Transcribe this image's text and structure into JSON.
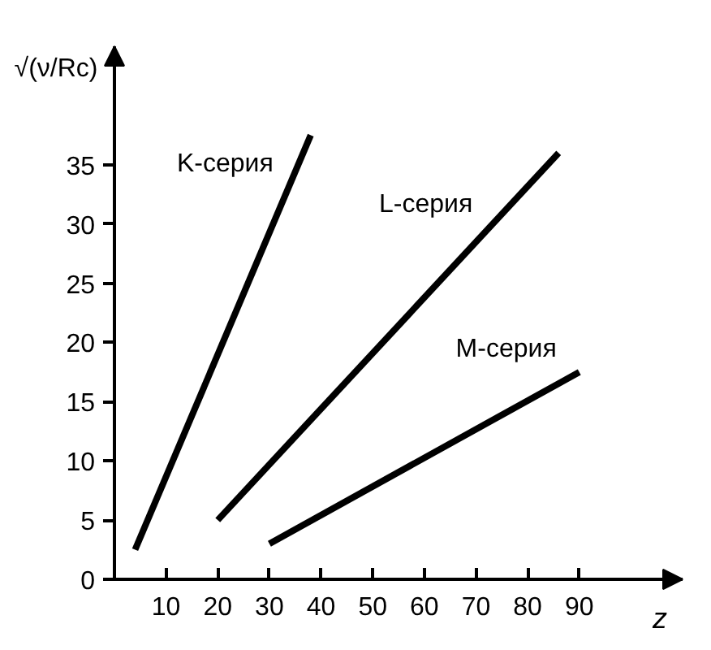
{
  "chart_data": {
    "type": "line",
    "xlabel": "z",
    "ylabel": "√(ν/Rc)",
    "series": [
      {
        "name": "K-серия",
        "color": "#000000",
        "x": [
          4,
          38
        ],
        "values": [
          2.5,
          37.5
        ]
      },
      {
        "name": "L-серия",
        "color": "#000000",
        "x": [
          20,
          86
        ],
        "values": [
          5,
          36
        ]
      },
      {
        "name": "M-серия",
        "color": "#000000",
        "x": [
          30,
          90
        ],
        "values": [
          3,
          17.5
        ]
      }
    ],
    "xlim": [
      0,
      110
    ],
    "ylim": [
      0,
      45
    ],
    "xticks": [
      10,
      20,
      30,
      40,
      50,
      60,
      70,
      80,
      90
    ],
    "yticks": [
      0,
      5,
      10,
      15,
      20,
      25,
      30,
      35
    ],
    "grid": false,
    "line_style": "solid"
  }
}
